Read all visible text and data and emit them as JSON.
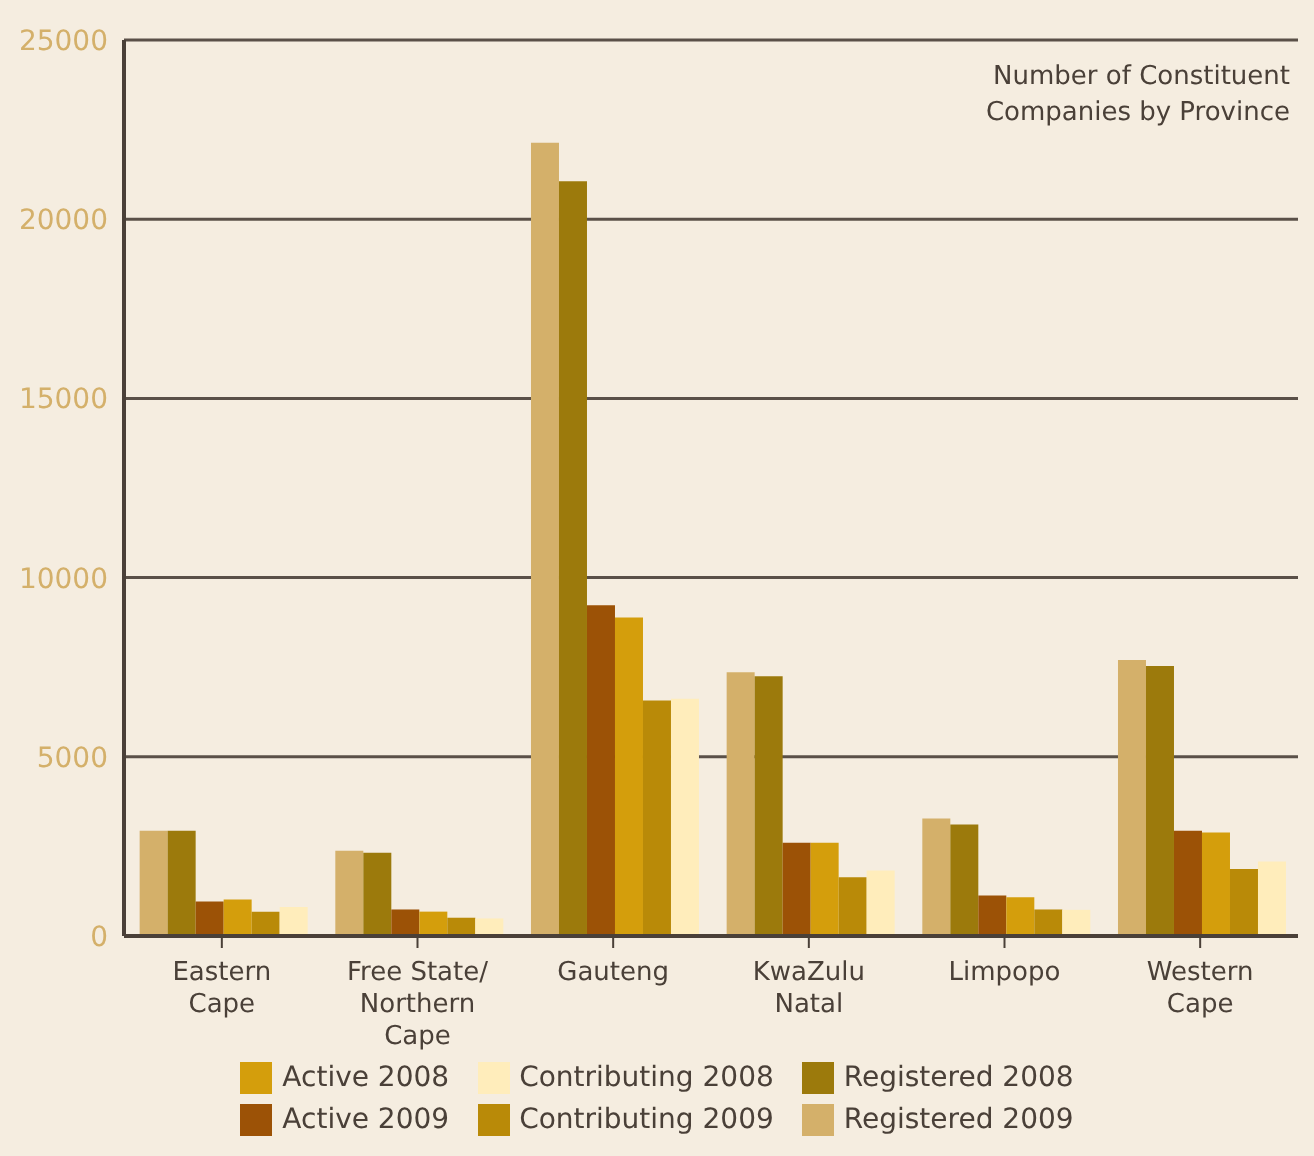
{
  "chart_data": {
    "type": "bar",
    "title": "Number of Constituent\nCompanies by Province",
    "categories": [
      "Eastern\nCape",
      "Free State/\nNorthern\nCape",
      "Gauteng",
      "KwaZulu\nNatal",
      "Limpopo",
      "Western\nCape"
    ],
    "series": [
      {
        "name": "Registered 2009",
        "color": "#d4b06a",
        "values": [
          2940,
          2380,
          22130,
          7360,
          3280,
          7700
        ]
      },
      {
        "name": "Registered 2008",
        "color": "#9c7a0c",
        "values": [
          2940,
          2320,
          21060,
          7250,
          3110,
          7530
        ]
      },
      {
        "name": "Active 2009",
        "color": "#9c5206",
        "values": [
          960,
          740,
          9230,
          2600,
          1130,
          2940
        ]
      },
      {
        "name": "Active 2008",
        "color": "#d49e0c",
        "values": [
          1020,
          680,
          8890,
          2600,
          1080,
          2890
        ]
      },
      {
        "name": "Contributing 2009",
        "color": "#b98a08",
        "values": [
          680,
          510,
          6570,
          1640,
          740,
          1870
        ]
      },
      {
        "name": "Contributing 2008",
        "color": "#ffedbb",
        "values": [
          810,
          490,
          6620,
          1830,
          730,
          2080
        ]
      }
    ],
    "ylim": [
      0,
      25000
    ],
    "yticks": [
      0,
      5000,
      10000,
      15000,
      20000,
      25000
    ],
    "grid": "y",
    "legend": "bottom"
  }
}
